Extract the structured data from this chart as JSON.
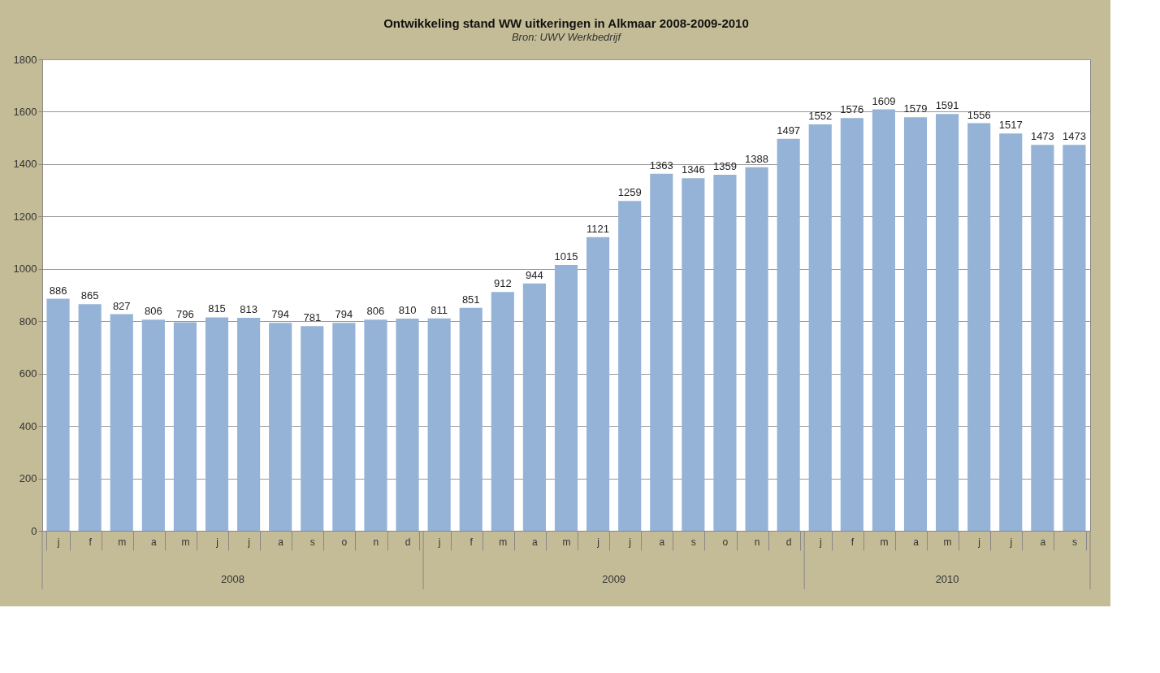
{
  "chart_data": {
    "type": "bar",
    "title": "Ontwikkeling stand WW uitkeringen in Alkmaar 2008-2009-2010",
    "subtitle": "Bron: UWV Werkbedrijf",
    "categories": [
      "j",
      "f",
      "m",
      "a",
      "m",
      "j",
      "j",
      "a",
      "s",
      "o",
      "n",
      "d",
      "j",
      "f",
      "m",
      "a",
      "m",
      "j",
      "j",
      "a",
      "s",
      "o",
      "n",
      "d",
      "j",
      "f",
      "m",
      "a",
      "m",
      "j",
      "j",
      "a",
      "s"
    ],
    "values": [
      886,
      865,
      827,
      806,
      796,
      815,
      813,
      794,
      781,
      794,
      806,
      810,
      811,
      851,
      912,
      944,
      1015,
      1121,
      1259,
      1363,
      1346,
      1359,
      1388,
      1497,
      1552,
      1576,
      1609,
      1579,
      1591,
      1556,
      1517,
      1473,
      1473
    ],
    "color": "#95b3d7",
    "ylim": [
      0,
      1800
    ],
    "yticks": [
      0,
      200,
      400,
      600,
      800,
      1000,
      1200,
      1400,
      1600,
      1800
    ],
    "grid": "y",
    "data_labels": true,
    "annotations": [
      "2008",
      "2009",
      "2010"
    ]
  }
}
